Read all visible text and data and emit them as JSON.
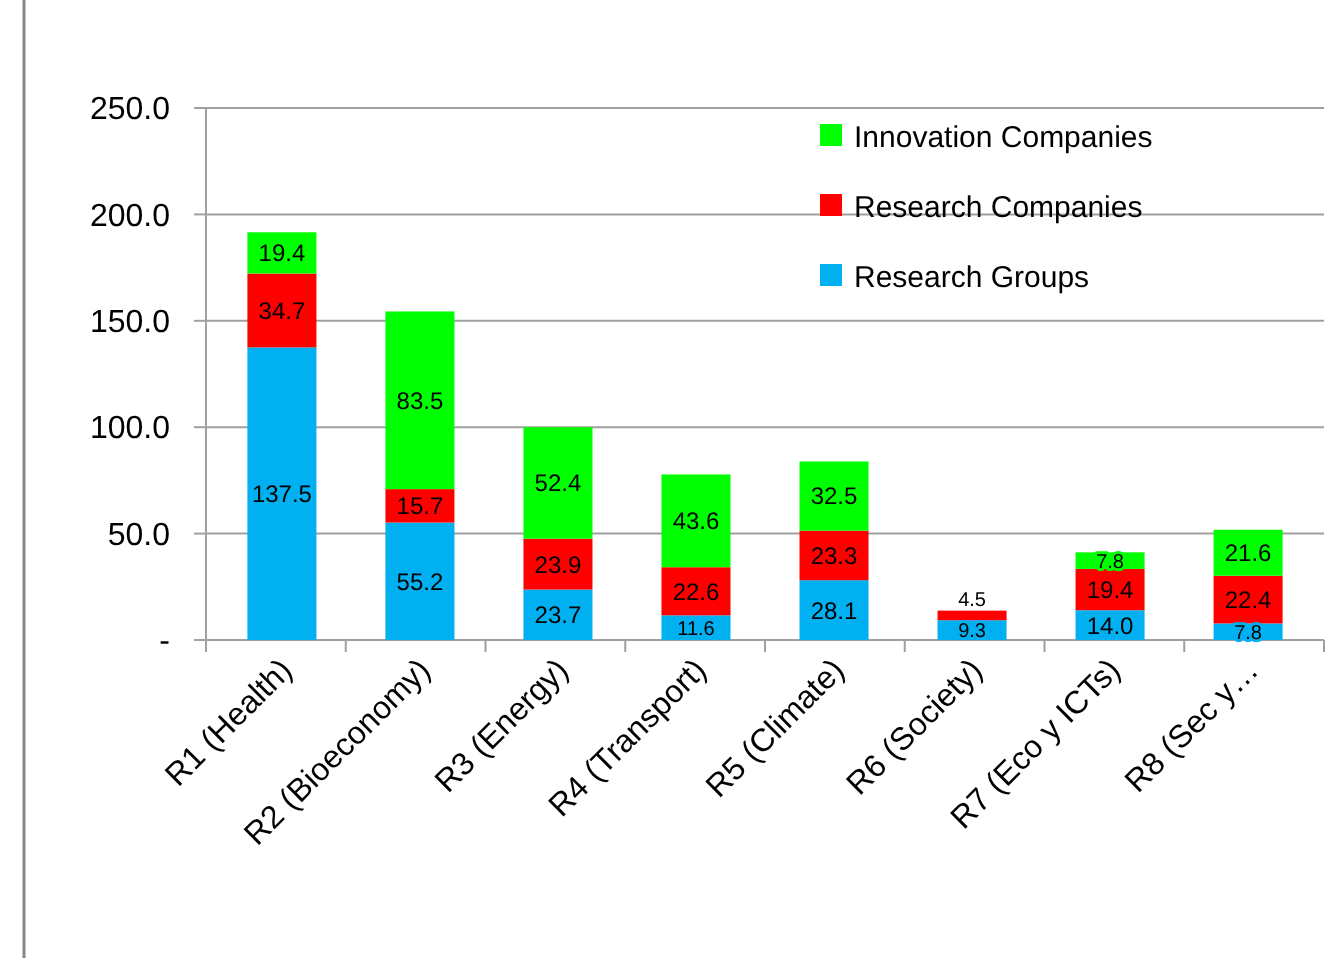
{
  "chart_data": {
    "type": "bar",
    "stacked": true,
    "categories": [
      "R1 (Health)",
      "R2 (Bioeconomy)",
      "R3 (Energy)",
      "R4 (Transport)",
      "R5 (Climate)",
      "R6 (Society)",
      "R7 (Eco y ICTs)",
      "R8 (Sec y…"
    ],
    "series": [
      {
        "name": "Research Groups",
        "color": "#00b0f0",
        "values": [
          137.5,
          55.2,
          23.7,
          11.6,
          28.1,
          9.3,
          14.0,
          7.8
        ],
        "value_labels": [
          "137.5",
          "55.2",
          "23.7",
          "11.6",
          "28.1",
          "9.3",
          "14.0",
          "7.8"
        ]
      },
      {
        "name": "Research Companies",
        "color": "#ff0000",
        "values": [
          34.7,
          15.7,
          23.9,
          22.6,
          23.3,
          4.5,
          19.4,
          22.4
        ],
        "value_labels": [
          "34.7",
          "15.7",
          "23.9",
          "22.6",
          "23.3",
          "4.5",
          "19.4",
          "22.4"
        ]
      },
      {
        "name": "Innovation Companies",
        "color": "#00ff00",
        "values": [
          19.4,
          83.5,
          52.4,
          43.6,
          32.5,
          null,
          7.8,
          21.6
        ],
        "value_labels": [
          "19.4",
          "83.5",
          "52.4",
          "43.6",
          "32.5",
          null,
          "7.8",
          "21.6"
        ]
      }
    ],
    "ylim": [
      0,
      250
    ],
    "yticks": [
      {
        "value": 0,
        "label": "-"
      },
      {
        "value": 50,
        "label": "50.0"
      },
      {
        "value": 100,
        "label": "100.0"
      },
      {
        "value": 150,
        "label": "150.0"
      },
      {
        "value": 200,
        "label": "200.0"
      },
      {
        "value": 250,
        "label": "250.0"
      }
    ],
    "grid": "y",
    "legend": "top right"
  }
}
